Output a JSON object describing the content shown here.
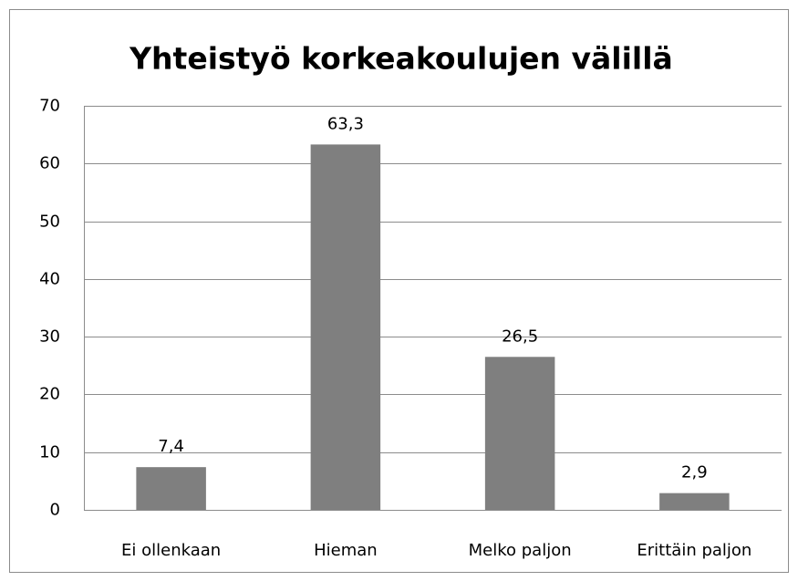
{
  "chart_data": {
    "type": "bar",
    "title": "Yhteistyö korkeakoulujen välillä",
    "categories": [
      "Ei ollenkaan",
      "Hieman",
      "Melko paljon",
      "Erittäin paljon"
    ],
    "values": [
      7.4,
      63.3,
      26.5,
      2.9
    ],
    "value_labels": [
      "7,4",
      "63,3",
      "26,5",
      "2,9"
    ],
    "color": "#7f7f7f",
    "ylim": [
      0,
      70
    ],
    "yticks": [
      0,
      10,
      20,
      30,
      40,
      50,
      60,
      70
    ],
    "grid": true
  }
}
